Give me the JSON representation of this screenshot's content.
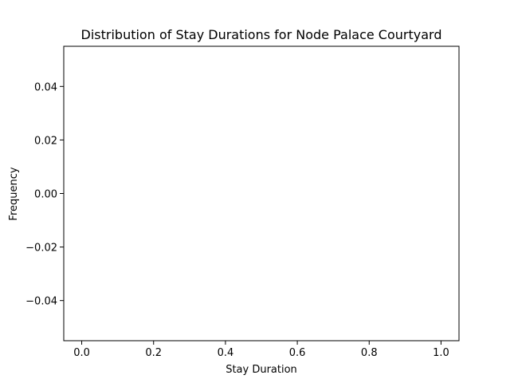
{
  "chart_data": {
    "type": "bar",
    "title": "Distribution of Stay Durations for Node Palace Courtyard",
    "xlabel": "Stay Duration",
    "ylabel": "Frequency",
    "xlim": [
      -0.05,
      1.05
    ],
    "ylim": [
      -0.055,
      0.055
    ],
    "xticks": [
      0.0,
      0.2,
      0.4,
      0.6,
      0.8,
      1.0
    ],
    "xtick_labels": [
      "0.0",
      "0.2",
      "0.4",
      "0.6",
      "0.8",
      "1.0"
    ],
    "yticks": [
      -0.04,
      -0.02,
      0.0,
      0.02,
      0.04
    ],
    "ytick_labels": [
      "−0.04",
      "−0.02",
      "0.00",
      "0.02",
      "0.04"
    ],
    "values": [],
    "grid": false,
    "legend": "none"
  }
}
